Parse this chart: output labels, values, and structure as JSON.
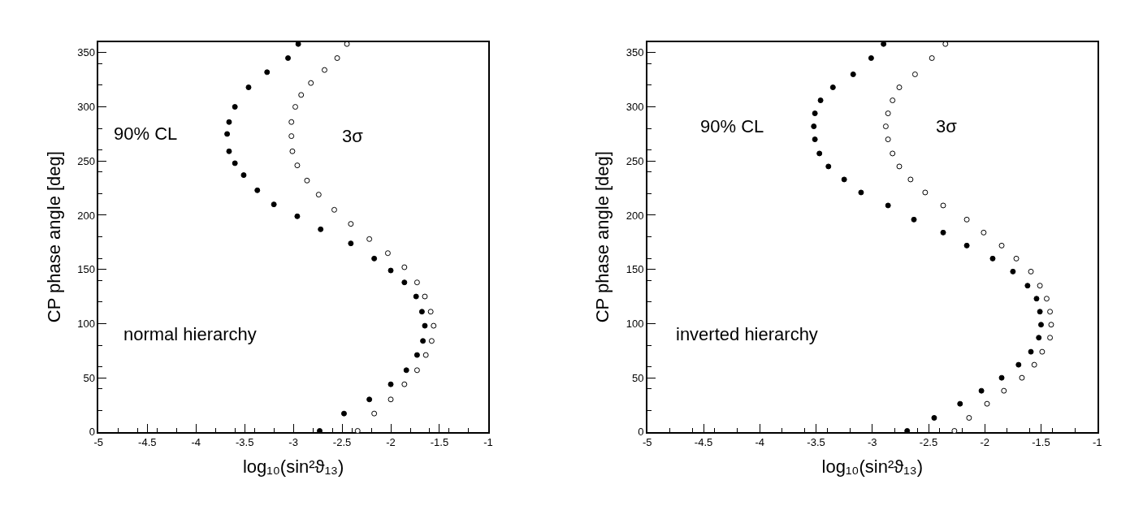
{
  "chart_data": [
    {
      "type": "scatter",
      "xlabel": "log₁₀(sin²ϑ₁₃)",
      "ylabel": "CP phase angle [deg]",
      "xlim": [
        -5,
        -1
      ],
      "xticks": [
        -5,
        -4.5,
        -4,
        -3.5,
        -3,
        -2.5,
        -2,
        -1.5,
        -1
      ],
      "ylim": [
        0,
        360
      ],
      "yticks": [
        0,
        50,
        100,
        150,
        200,
        250,
        300,
        350
      ],
      "annotations": [
        "normal hierarchy"
      ],
      "series": [
        {
          "name": "90% CL",
          "color": "#000000",
          "marker": "circle",
          "x": [
            -2.73,
            -2.48,
            -2.22,
            -2.0,
            -1.84,
            -1.73,
            -1.67,
            -1.65,
            -1.68,
            -1.74,
            -1.86,
            -2.0,
            -2.17,
            -2.41,
            -2.72,
            -2.96,
            -3.2,
            -3.37,
            -3.51,
            -3.6,
            -3.66,
            -3.68,
            -3.66,
            -3.6,
            -3.46,
            -3.27,
            -3.055,
            -2.95
          ],
          "values": [
            1,
            17,
            30,
            44,
            57,
            71,
            84,
            98,
            111,
            125,
            138,
            149,
            160,
            174,
            187,
            199,
            210,
            223,
            237,
            248,
            259,
            275,
            286,
            300,
            318,
            332,
            345,
            358
          ]
        },
        {
          "name": "3σ",
          "color": "#000000",
          "marker": "circle-open",
          "x": [
            -2.34,
            -2.17,
            -2.0,
            -1.86,
            -1.73,
            -1.64,
            -1.58,
            -1.56,
            -1.59,
            -1.65,
            -1.73,
            -1.86,
            -2.03,
            -2.22,
            -2.41,
            -2.58,
            -2.74,
            -2.86,
            -2.96,
            -3.01,
            -3.02,
            -3.02,
            -2.98,
            -2.92,
            -2.82,
            -2.68,
            -2.55,
            -2.45
          ],
          "values": [
            1,
            17,
            30,
            44,
            57,
            71,
            84,
            98,
            111,
            125,
            138,
            152,
            165,
            178,
            192,
            205,
            219,
            232,
            246,
            259,
            273,
            286,
            300,
            311,
            322,
            334,
            345,
            358
          ]
        }
      ]
    },
    {
      "type": "scatter",
      "xlabel": "log₁₀(sin²ϑ₁₃)",
      "ylabel": "CP phase angle [deg]",
      "xlim": [
        -5,
        -1
      ],
      "xticks": [
        -5,
        -4.5,
        -4,
        -3.5,
        -3,
        -2.5,
        -2,
        -1.5,
        -1
      ],
      "ylim": [
        0,
        360
      ],
      "yticks": [
        0,
        50,
        100,
        150,
        200,
        250,
        300,
        350
      ],
      "annotations": [
        "inverted hierarchy"
      ],
      "series": [
        {
          "name": "90% CL",
          "color": "#000000",
          "marker": "circle",
          "x": [
            -2.69,
            -2.45,
            -2.22,
            -2.03,
            -1.85,
            -1.7,
            -1.59,
            -1.52,
            -1.5,
            -1.51,
            -1.54,
            -1.62,
            -1.75,
            -1.93,
            -2.16,
            -2.37,
            -2.63,
            -2.86,
            -3.1,
            -3.25,
            -3.39,
            -3.47,
            -3.51,
            -3.52,
            -3.51,
            -3.46,
            -3.35,
            -3.17,
            -3.01,
            -2.9
          ],
          "values": [
            1,
            13,
            26,
            38,
            50,
            62,
            74,
            87,
            99,
            111,
            123,
            135,
            148,
            160,
            172,
            184,
            196,
            209,
            221,
            233,
            245,
            257,
            270,
            282,
            294,
            306,
            318,
            330,
            345,
            358
          ]
        },
        {
          "name": "3σ",
          "color": "#000000",
          "marker": "circle-open",
          "x": [
            -2.27,
            -2.14,
            -1.98,
            -1.83,
            -1.67,
            -1.56,
            -1.49,
            -1.42,
            -1.41,
            -1.42,
            -1.45,
            -1.51,
            -1.59,
            -1.72,
            -1.85,
            -2.01,
            -2.16,
            -2.37,
            -2.53,
            -2.66,
            -2.76,
            -2.82,
            -2.86,
            -2.88,
            -2.86,
            -2.82,
            -2.76,
            -2.62,
            -2.47,
            -2.35
          ],
          "values": [
            1,
            13,
            26,
            38,
            50,
            62,
            74,
            87,
            99,
            111,
            123,
            135,
            148,
            160,
            172,
            184,
            196,
            209,
            221,
            233,
            245,
            257,
            270,
            282,
            294,
            306,
            318,
            330,
            345,
            358
          ]
        }
      ]
    }
  ]
}
